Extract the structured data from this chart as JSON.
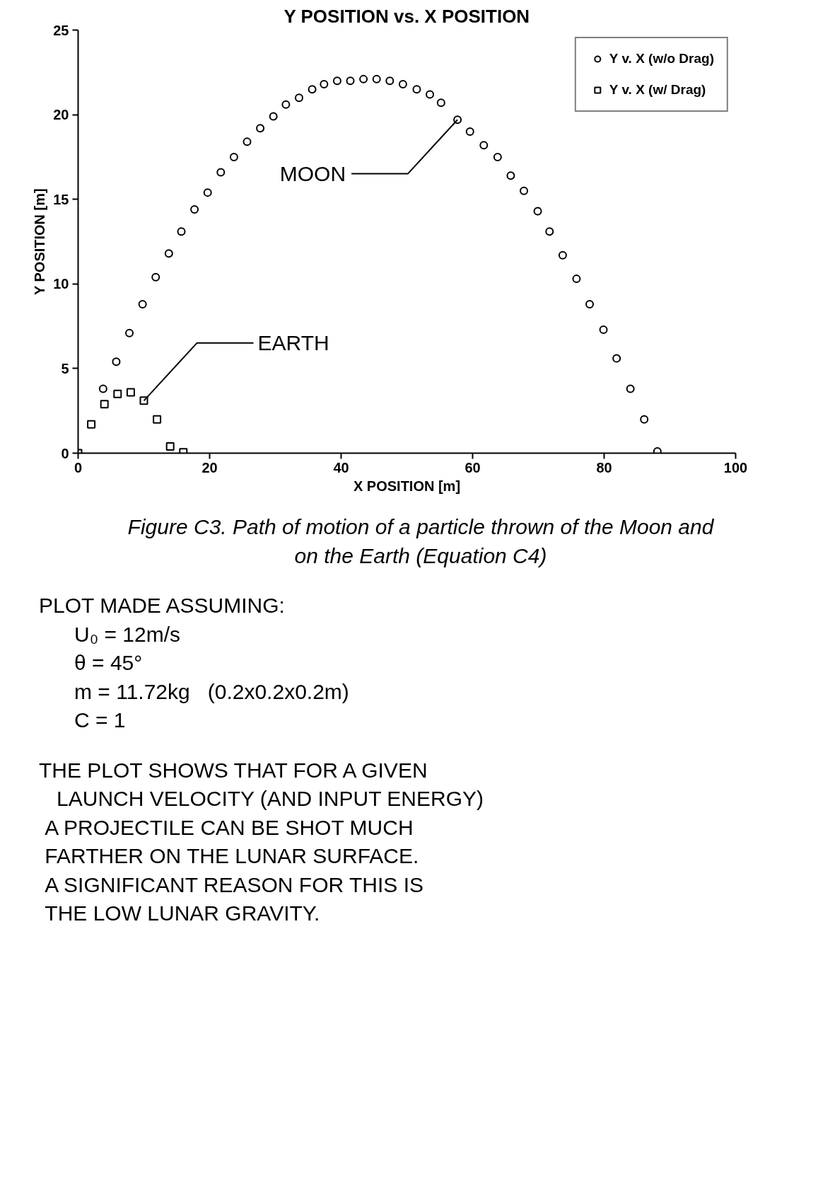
{
  "chart_data": {
    "type": "scatter",
    "title": "Y POSITION vs. X POSITION",
    "xlabel": "X POSITION [m]",
    "ylabel": "Y POSITION [m]",
    "xlim": [
      0,
      100
    ],
    "ylim": [
      0,
      25
    ],
    "xticks": [
      0,
      20,
      40,
      60,
      80,
      100
    ],
    "yticks": [
      0,
      5,
      10,
      15,
      20,
      25
    ],
    "grid": false,
    "legend": "top right",
    "series": [
      {
        "name": "Y v. X (w/o Drag)",
        "color": "#000000",
        "marker": "circle",
        "x": [
          3.8,
          5.8,
          7.8,
          9.8,
          11.8,
          13.8,
          15.7,
          17.7,
          19.7,
          21.7,
          23.7,
          25.7,
          27.7,
          29.7,
          31.6,
          33.6,
          35.6,
          37.4,
          39.4,
          41.4,
          43.4,
          45.4,
          47.4,
          49.4,
          51.5,
          53.5,
          55.2,
          57.7,
          59.6,
          61.7,
          63.8,
          65.8,
          67.8,
          69.9,
          71.7,
          73.7,
          75.8,
          77.8,
          79.9,
          81.9,
          84.0,
          86.1,
          88.1
        ],
        "values": [
          3.8,
          5.4,
          7.1,
          8.8,
          10.4,
          11.8,
          13.1,
          14.4,
          15.4,
          16.6,
          17.5,
          18.4,
          19.2,
          19.9,
          20.6,
          21.0,
          21.5,
          21.8,
          22.0,
          22.0,
          22.1,
          22.1,
          22.0,
          21.8,
          21.5,
          21.2,
          20.7,
          19.7,
          19.0,
          18.2,
          17.5,
          16.4,
          15.5,
          14.3,
          13.1,
          11.7,
          10.3,
          8.8,
          7.3,
          5.6,
          3.8,
          2.0,
          0.1
        ]
      },
      {
        "name": "Y v. X (w/ Drag)",
        "color": "#000000",
        "marker": "square",
        "x": [
          0,
          2,
          4,
          6,
          8,
          10,
          12,
          14,
          16
        ],
        "values": [
          0,
          1.7,
          2.9,
          3.5,
          3.6,
          3.1,
          2.0,
          0.4,
          0.05
        ]
      }
    ],
    "annotations": [
      {
        "text": "MOON",
        "x": 57.7,
        "y": 19.7
      },
      {
        "text": "EARTH",
        "x": 10,
        "y": 3.1
      },
      "Figure C3. Path of motion of a particle thrown of the Moon and on the Earth (Equation C4)",
      "PLOT MADE ASSUMING:\n      U₀ = 12m/s\n      θ = 45°\n      m = 11.72kg   (0.2x0.2x0.2m)\n      C = 1",
      "THE PLOT SHOWS THAT FOR A GIVEN\n   LAUNCH VELOCITY (AND INPUT ENERGY)\n A PROJECTILE CAN BE SHOT MUCH\n FARTHER ON THE LUNAR SURFACE.\n A SIGNIFICANT REASON FOR THIS IS\n THE LOW LUNAR GRAVITY."
    ]
  }
}
